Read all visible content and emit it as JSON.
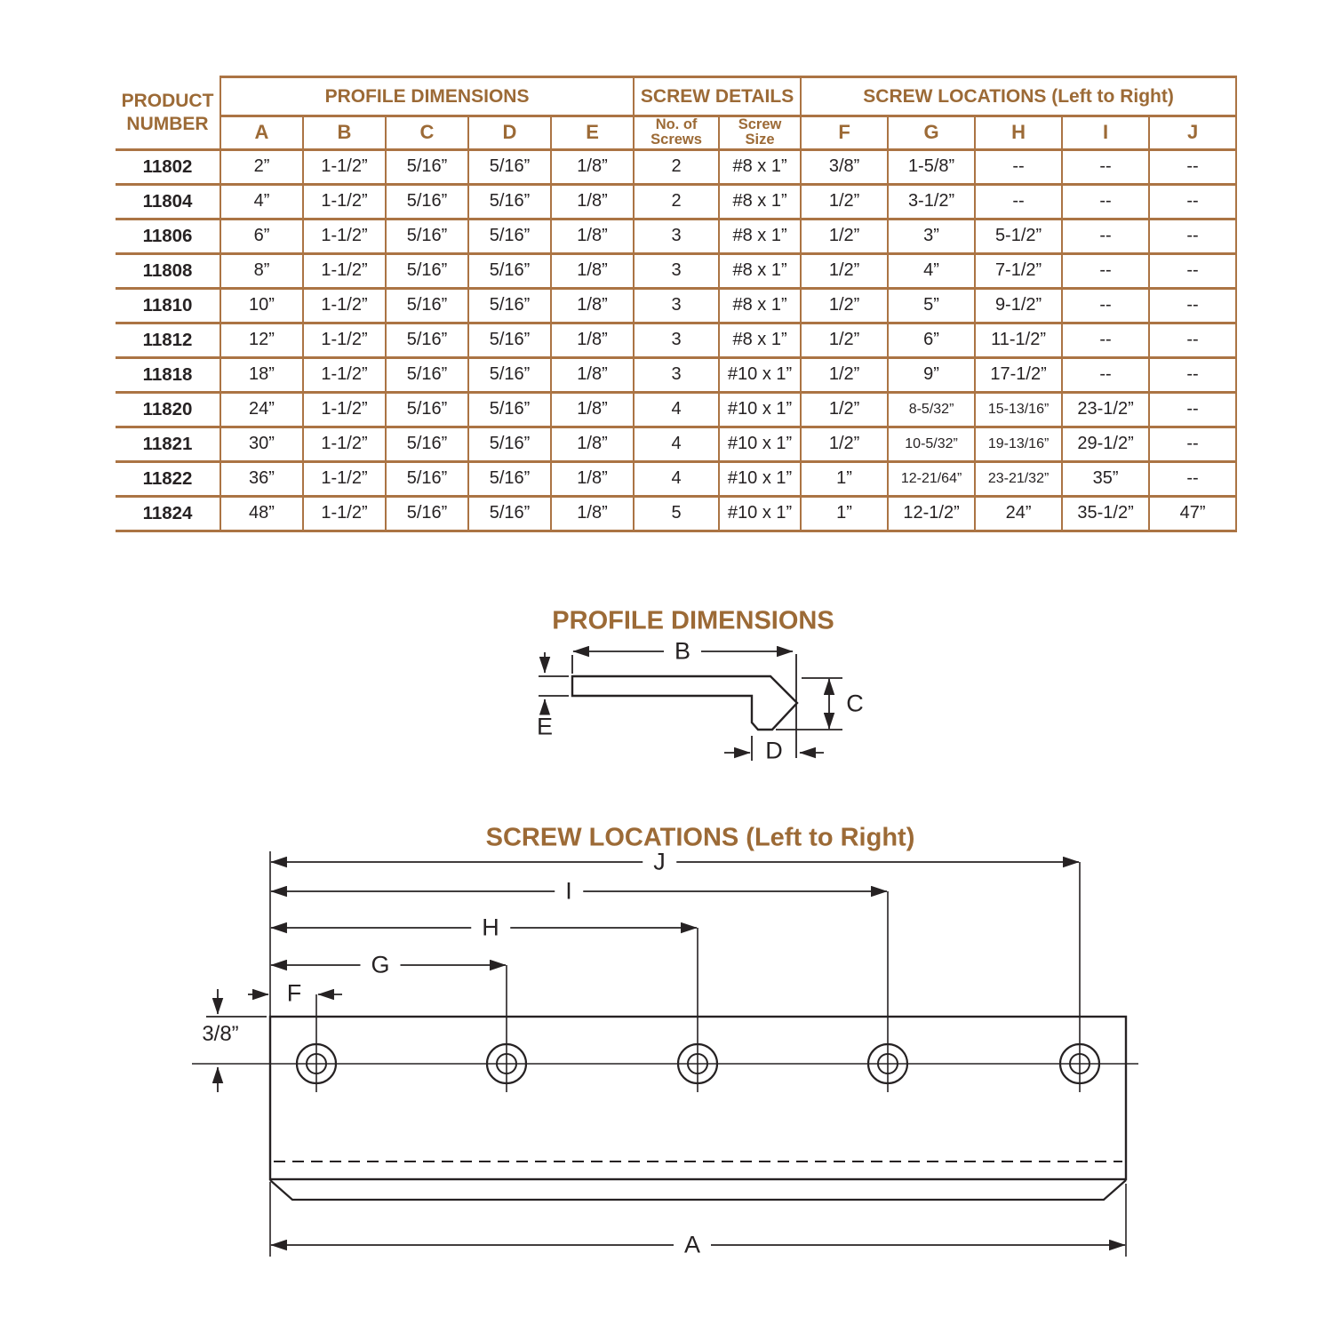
{
  "colors": {
    "accent_brown": "#9c6a36",
    "table_border": "#ab7444",
    "ink": "#262223"
  },
  "table": {
    "product_header": "PRODUCT\nNUMBER",
    "groups": {
      "profile": "PROFILE DIMENSIONS",
      "screws": "SCREW DETAILS",
      "locations": "SCREW LOCATIONS (Left to Right)"
    },
    "dim_columns": [
      "A",
      "B",
      "C",
      "D",
      "E"
    ],
    "screw_columns": [
      "No. of\nScrews",
      "Screw\nSize"
    ],
    "location_columns": [
      "F",
      "G",
      "H",
      "I",
      "J"
    ],
    "rows": [
      {
        "id": "11802",
        "v": [
          "2”",
          "1-1/2”",
          "5/16”",
          "5/16”",
          "1/8”",
          "2",
          "#8 x 1”",
          "3/8”",
          "1-5/8”",
          "--",
          "--",
          "--"
        ]
      },
      {
        "id": "11804",
        "v": [
          "4”",
          "1-1/2”",
          "5/16”",
          "5/16”",
          "1/8”",
          "2",
          "#8 x 1”",
          "1/2”",
          "3-1/2”",
          "--",
          "--",
          "--"
        ]
      },
      {
        "id": "11806",
        "v": [
          "6”",
          "1-1/2”",
          "5/16”",
          "5/16”",
          "1/8”",
          "3",
          "#8 x 1”",
          "1/2”",
          "3”",
          "5-1/2”",
          "--",
          "--"
        ]
      },
      {
        "id": "11808",
        "v": [
          "8”",
          "1-1/2”",
          "5/16”",
          "5/16”",
          "1/8”",
          "3",
          "#8 x 1”",
          "1/2”",
          "4”",
          "7-1/2”",
          "--",
          "--"
        ]
      },
      {
        "id": "11810",
        "v": [
          "10”",
          "1-1/2”",
          "5/16”",
          "5/16”",
          "1/8”",
          "3",
          "#8 x 1”",
          "1/2”",
          "5”",
          "9-1/2”",
          "--",
          "--"
        ]
      },
      {
        "id": "11812",
        "v": [
          "12”",
          "1-1/2”",
          "5/16”",
          "5/16”",
          "1/8”",
          "3",
          "#8 x 1”",
          "1/2”",
          "6”",
          "11-1/2”",
          "--",
          "--"
        ]
      },
      {
        "id": "11818",
        "v": [
          "18”",
          "1-1/2”",
          "5/16”",
          "5/16”",
          "1/8”",
          "3",
          "#10 x 1”",
          "1/2”",
          "9”",
          "17-1/2”",
          "--",
          "--"
        ]
      },
      {
        "id": "11820",
        "v": [
          "24”",
          "1-1/2”",
          "5/16”",
          "5/16”",
          "1/8”",
          "4",
          "#10 x 1”",
          "1/2”",
          "8-5/32”",
          "15-13/16”",
          "23-1/2”",
          "--"
        ]
      },
      {
        "id": "11821",
        "v": [
          "30”",
          "1-1/2”",
          "5/16”",
          "5/16”",
          "1/8”",
          "4",
          "#10 x 1”",
          "1/2”",
          "10-5/32”",
          "19-13/16”",
          "29-1/2”",
          "--"
        ]
      },
      {
        "id": "11822",
        "v": [
          "36”",
          "1-1/2”",
          "5/16”",
          "5/16”",
          "1/8”",
          "4",
          "#10 x 1”",
          "1”",
          "12-21/64”",
          "23-21/32”",
          "35”",
          "--"
        ]
      },
      {
        "id": "11824",
        "v": [
          "48”",
          "1-1/2”",
          "5/16”",
          "5/16”",
          "1/8”",
          "5",
          "#10 x 1”",
          "1”",
          "12-1/2”",
          "24”",
          "35-1/2”",
          "47”"
        ]
      }
    ]
  },
  "profile_diagram": {
    "title": "PROFILE DIMENSIONS",
    "label_b": "B",
    "label_c": "C",
    "label_d": "D",
    "label_e": "E"
  },
  "screw_diagram": {
    "title": "SCREW LOCATIONS (Left to Right)",
    "label_f": "F",
    "label_g": "G",
    "label_h": "H",
    "label_i": "I",
    "label_j": "J",
    "label_a": "A",
    "edge_offset": "3/8”"
  }
}
